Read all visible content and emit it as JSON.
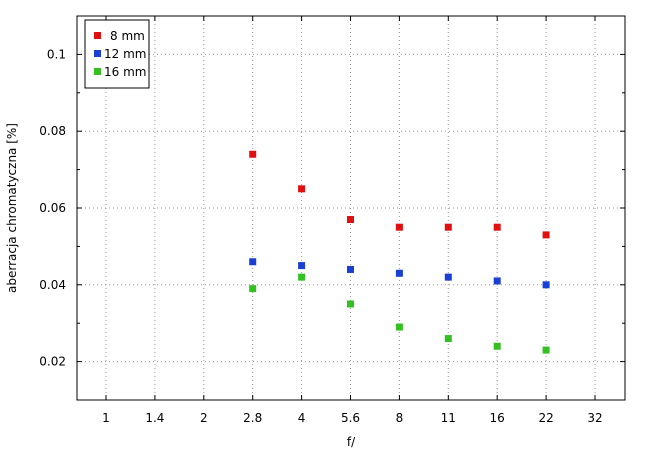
{
  "chart_data": {
    "type": "scatter",
    "xlabel": "f/",
    "ylabel": "aberracja chromatyczna [%]",
    "x_ticks": [
      "1",
      "1.4",
      "2",
      "2.8",
      "4",
      "5.6",
      "8",
      "11",
      "16",
      "22",
      "32"
    ],
    "y_ticks": [
      "0.02",
      "0.04",
      "0.06",
      "0.08",
      "0.1"
    ],
    "ylim": [
      0.01,
      0.11
    ],
    "grid": true,
    "legend_position": "top-left",
    "x": [
      "2.8",
      "4",
      "5.6",
      "8",
      "11",
      "16",
      "22"
    ],
    "series": [
      {
        "name": "8 mm",
        "color": "#e01010",
        "values": [
          0.074,
          0.065,
          0.057,
          0.055,
          0.055,
          0.055,
          0.053
        ]
      },
      {
        "name": "12 mm",
        "color": "#1a3fd4",
        "values": [
          0.046,
          0.045,
          0.044,
          0.043,
          0.042,
          0.041,
          0.04
        ]
      },
      {
        "name": "16 mm",
        "color": "#33c020",
        "values": [
          0.039,
          0.042,
          0.035,
          0.029,
          0.026,
          0.024,
          0.023
        ]
      }
    ]
  }
}
